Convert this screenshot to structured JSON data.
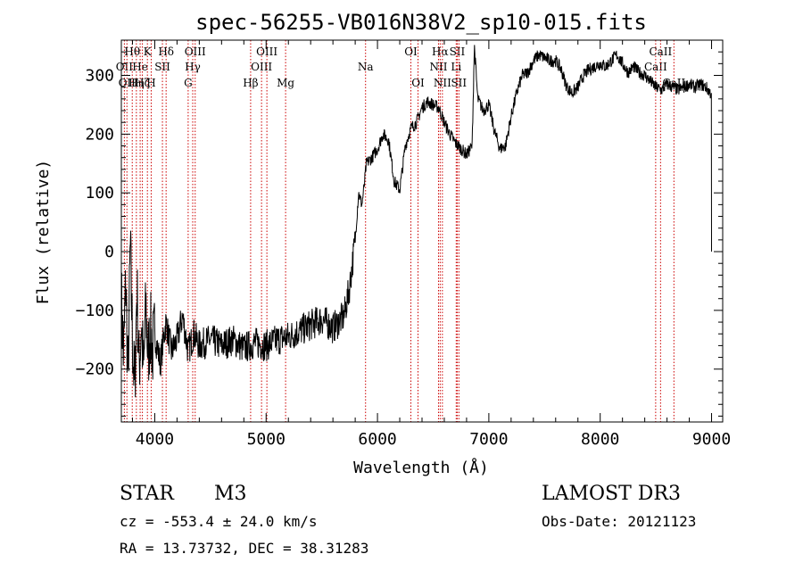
{
  "chart_data": {
    "type": "line",
    "title": "spec-56255-VB016N38V2_sp10-015.fits",
    "xlabel": "Wavelength (Å)",
    "ylabel": "Flux (relative)",
    "xlim": [
      3700,
      9100
    ],
    "ylim": [
      -290,
      360
    ],
    "x_ticks": [
      4000,
      5000,
      6000,
      7000,
      8000,
      9000
    ],
    "y_ticks": [
      -200,
      -100,
      0,
      100,
      200,
      300
    ],
    "series": [
      {
        "name": "flux",
        "x": [
          3700,
          3720,
          3740,
          3760,
          3780,
          3800,
          3820,
          3840,
          3860,
          3880,
          3900,
          3920,
          3940,
          3960,
          3980,
          4000,
          4050,
          4100,
          4150,
          4200,
          4250,
          4300,
          4350,
          4400,
          4500,
          4600,
          4700,
          4800,
          4900,
          5000,
          5100,
          5200,
          5300,
          5400,
          5500,
          5600,
          5650,
          5700,
          5750,
          5800,
          5830,
          5860,
          5880,
          5900,
          5950,
          6000,
          6050,
          6100,
          6150,
          6200,
          6250,
          6300,
          6350,
          6400,
          6450,
          6500,
          6550,
          6600,
          6650,
          6700,
          6750,
          6800,
          6850,
          6870,
          6900,
          6950,
          7000,
          7050,
          7100,
          7150,
          7200,
          7250,
          7300,
          7350,
          7400,
          7450,
          7500,
          7550,
          7600,
          7650,
          7700,
          7750,
          7800,
          7850,
          7900,
          7950,
          8000,
          8050,
          8100,
          8150,
          8200,
          8250,
          8300,
          8350,
          8400,
          8450,
          8500,
          8550,
          8600,
          8650,
          8700,
          8750,
          8800,
          8850,
          8900,
          8950,
          8990,
          9000
        ],
        "y": [
          -80,
          -180,
          -50,
          -220,
          10,
          -150,
          -240,
          -60,
          -200,
          -120,
          -210,
          -90,
          -180,
          -130,
          -170,
          -140,
          -190,
          -120,
          -170,
          -150,
          -110,
          -170,
          -140,
          -160,
          -150,
          -160,
          -150,
          -165,
          -155,
          -160,
          -150,
          -145,
          -135,
          -125,
          -115,
          -130,
          -120,
          -110,
          -60,
          20,
          100,
          80,
          110,
          150,
          160,
          175,
          200,
          190,
          120,
          105,
          180,
          210,
          220,
          245,
          255,
          250,
          245,
          220,
          200,
          185,
          175,
          165,
          180,
          350,
          260,
          240,
          250,
          205,
          175,
          180,
          230,
          270,
          300,
          305,
          325,
          335,
          330,
          325,
          325,
          310,
          280,
          270,
          280,
          300,
          310,
          315,
          320,
          315,
          325,
          335,
          320,
          305,
          315,
          305,
          300,
          290,
          280,
          275,
          285,
          280,
          275,
          280,
          285,
          280,
          285,
          280,
          270,
          0
        ]
      }
    ],
    "line_markers": [
      {
        "wavelength": 3727,
        "label": "OII",
        "row": 2
      },
      {
        "wavelength": 3750,
        "label": "OII",
        "row": 3
      },
      {
        "wavelength": 3798,
        "label": "Hθ",
        "row": 1
      },
      {
        "wavelength": 3835,
        "label": "Hη",
        "row": 3
      },
      {
        "wavelength": 3869,
        "label": "He",
        "row": 2
      },
      {
        "wavelength": 3889,
        "label": "Hζ",
        "row": 3
      },
      {
        "wavelength": 3934,
        "label": "K",
        "row": 1
      },
      {
        "wavelength": 3968,
        "label": "H",
        "row": 3
      },
      {
        "wavelength": 4069,
        "label": "SII",
        "row": 2
      },
      {
        "wavelength": 4102,
        "label": "Hδ",
        "row": 1
      },
      {
        "wavelength": 4300,
        "label": "G",
        "row": 3
      },
      {
        "wavelength": 4341,
        "label": "Hγ",
        "row": 2
      },
      {
        "wavelength": 4363,
        "label": "OIII",
        "row": 1
      },
      {
        "wavelength": 4861,
        "label": "Hβ",
        "row": 3
      },
      {
        "wavelength": 4959,
        "label": "OIII",
        "row": 2
      },
      {
        "wavelength": 5007,
        "label": "OIII",
        "row": 1
      },
      {
        "wavelength": 5175,
        "label": "Mg",
        "row": 3
      },
      {
        "wavelength": 5893,
        "label": "Na",
        "row": 2
      },
      {
        "wavelength": 6300,
        "label": "OI",
        "row": 1
      },
      {
        "wavelength": 6364,
        "label": "OI",
        "row": 3
      },
      {
        "wavelength": 6548,
        "label": "NII",
        "row": 2
      },
      {
        "wavelength": 6563,
        "label": "Hα",
        "row": 1
      },
      {
        "wavelength": 6583,
        "label": "NII",
        "row": 3
      },
      {
        "wavelength": 6707,
        "label": "Li",
        "row": 2
      },
      {
        "wavelength": 6716,
        "label": "SII",
        "row": 1
      },
      {
        "wavelength": 6731,
        "label": "SII",
        "row": 3
      },
      {
        "wavelength": 8498,
        "label": "CaII",
        "row": 2
      },
      {
        "wavelength": 8542,
        "label": "CaII",
        "row": 1
      },
      {
        "wavelength": 8662,
        "label": "CaII",
        "row": 3
      }
    ]
  },
  "info": {
    "object_class": "STAR",
    "subclass": "M3",
    "survey": "LAMOST DR3",
    "redshift": "cz = -553.4 ± 24.0 km/s",
    "obs_date": "Obs-Date: 20121123",
    "coords": "RA =  13.73732, DEC =  38.31283"
  }
}
